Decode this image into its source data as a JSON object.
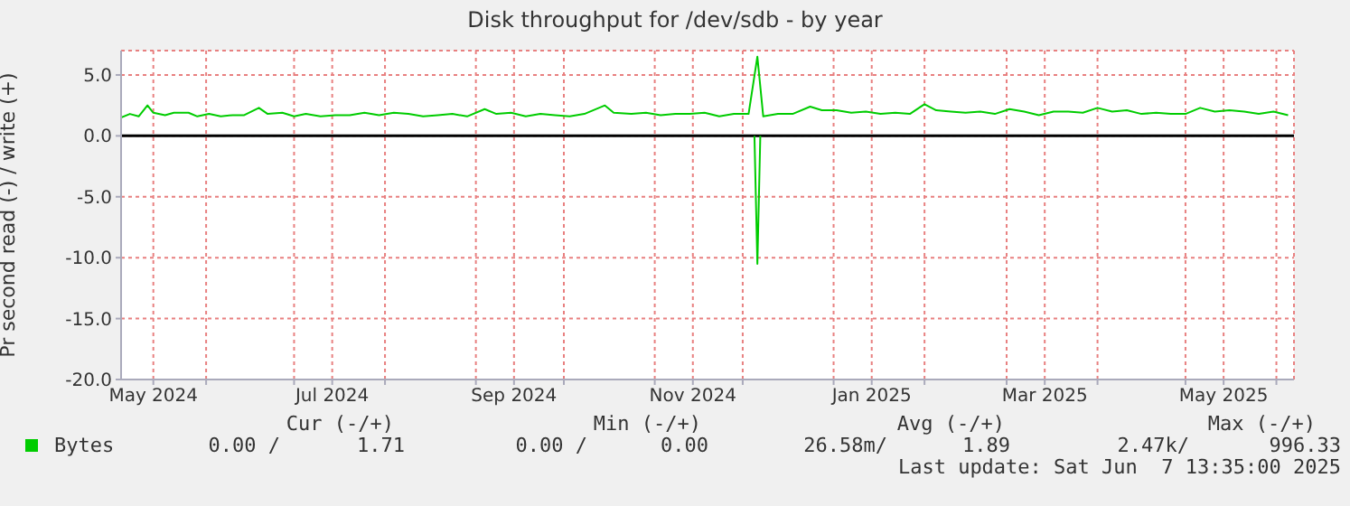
{
  "chart_data": {
    "type": "line",
    "title": "Disk throughput for /dev/sdb - by year",
    "ylabel": "Pr second read (-) / write (+)",
    "xlim": [
      "2024-05-03",
      "2025-06-07"
    ],
    "xticks": [
      {
        "value": "2024-05-14",
        "label": "May 2024"
      },
      {
        "value": "2024-06-01",
        "label": null
      },
      {
        "value": "2024-07-01",
        "label": null
      },
      {
        "value": "2024-07-14",
        "label": "Jul 2024"
      },
      {
        "value": "2024-08-01",
        "label": null
      },
      {
        "value": "2024-09-01",
        "label": null
      },
      {
        "value": "2024-09-14",
        "label": "Sep 2024"
      },
      {
        "value": "2024-10-01",
        "label": null
      },
      {
        "value": "2024-11-01",
        "label": null
      },
      {
        "value": "2024-11-14",
        "label": "Nov 2024"
      },
      {
        "value": "2024-12-01",
        "label": null
      },
      {
        "value": "2025-01-01",
        "label": null
      },
      {
        "value": "2025-01-14",
        "label": "Jan 2025"
      },
      {
        "value": "2025-02-01",
        "label": null
      },
      {
        "value": "2025-03-01",
        "label": null
      },
      {
        "value": "2025-03-14",
        "label": "Mar 2025"
      },
      {
        "value": "2025-04-01",
        "label": null
      },
      {
        "value": "2025-05-01",
        "label": null
      },
      {
        "value": "2025-05-14",
        "label": "May 2025"
      },
      {
        "value": "2025-06-01",
        "label": null
      }
    ],
    "ylim": [
      -20,
      7
    ],
    "yticks": [
      {
        "value": -20,
        "label": "-20.0"
      },
      {
        "value": -15,
        "label": "-15.0"
      },
      {
        "value": -10,
        "label": "-10.0"
      },
      {
        "value": -5,
        "label": "-5.0"
      },
      {
        "value": 0,
        "label": "0.0"
      },
      {
        "value": 5,
        "label": "5.0"
      }
    ],
    "grid": true,
    "legend": "bottom",
    "marker": "none",
    "line_style": "solid",
    "ref_lines": [
      {
        "axis": "y",
        "value": 0,
        "color": "#000000"
      }
    ],
    "series": [
      {
        "name": "Bytes",
        "color": "#00cc00",
        "x": [
          "2024-05-03",
          "2024-05-06",
          "2024-05-09",
          "2024-05-12",
          "2024-05-14",
          "2024-05-18",
          "2024-05-21",
          "2024-05-26",
          "2024-05-29",
          "2024-06-02",
          "2024-06-06",
          "2024-06-10",
          "2024-06-14",
          "2024-06-19",
          "2024-06-22",
          "2024-06-27",
          "2024-07-01",
          "2024-07-05",
          "2024-07-10",
          "2024-07-15",
          "2024-07-20",
          "2024-07-25",
          "2024-07-30",
          "2024-08-04",
          "2024-08-09",
          "2024-08-14",
          "2024-08-19",
          "2024-08-24",
          "2024-08-29",
          "2024-09-04",
          "2024-09-08",
          "2024-09-13",
          "2024-09-18",
          "2024-09-23",
          "2024-09-28",
          "2024-10-03",
          "2024-10-08",
          "2024-10-15",
          "2024-10-18",
          "2024-10-24",
          "2024-10-29",
          "2024-11-03",
          "2024-11-08",
          "2024-11-13",
          "2024-11-18",
          "2024-11-23",
          "2024-11-28",
          "2024-12-03",
          "2024-12-06",
          "2024-12-08",
          "2024-12-13",
          "2024-12-18",
          "2024-12-24",
          "2024-12-28",
          "2025-01-02",
          "2025-01-07",
          "2025-01-12",
          "2025-01-17",
          "2025-01-22",
          "2025-01-27",
          "2025-02-01",
          "2025-02-05",
          "2025-02-10",
          "2025-02-15",
          "2025-02-20",
          "2025-02-25",
          "2025-03-02",
          "2025-03-07",
          "2025-03-12",
          "2025-03-17",
          "2025-03-22",
          "2025-03-27",
          "2025-04-01",
          "2025-04-06",
          "2025-04-11",
          "2025-04-16",
          "2025-04-21",
          "2025-04-26",
          "2025-05-01",
          "2025-05-06",
          "2025-05-11",
          "2025-05-16",
          "2025-05-21",
          "2025-05-26",
          "2025-05-31",
          "2025-06-05"
        ],
        "values": [
          1.5,
          1.8,
          1.6,
          2.5,
          1.9,
          1.7,
          1.9,
          1.9,
          1.6,
          1.8,
          1.6,
          1.7,
          1.7,
          2.3,
          1.8,
          1.9,
          1.6,
          1.8,
          1.6,
          1.7,
          1.7,
          1.9,
          1.7,
          1.9,
          1.8,
          1.6,
          1.7,
          1.8,
          1.6,
          2.2,
          1.8,
          1.9,
          1.6,
          1.8,
          1.7,
          1.6,
          1.8,
          2.5,
          1.9,
          1.8,
          1.9,
          1.7,
          1.8,
          1.8,
          1.9,
          1.6,
          1.8,
          1.8,
          6.5,
          1.6,
          1.8,
          1.8,
          2.4,
          2.1,
          2.1,
          1.9,
          2.0,
          1.8,
          1.9,
          1.8,
          2.6,
          2.1,
          2.0,
          1.9,
          2.0,
          1.8,
          2.2,
          2.0,
          1.7,
          2.0,
          2.0,
          1.9,
          2.3,
          2.0,
          2.1,
          1.8,
          1.9,
          1.8,
          1.8,
          2.3,
          2.0,
          2.1,
          2.0,
          1.8,
          2.0,
          1.7
        ]
      },
      {
        "color": "#00cc00",
        "x": [
          "2024-12-05",
          "2024-12-06",
          "2024-12-07"
        ],
        "values": [
          0,
          -10.5,
          0
        ]
      }
    ],
    "annotations": [
      "Cur (-/+)",
      "Min (-/+)",
      "Avg (-/+)",
      "Max (-/+)",
      "0.00 /",
      "1.71",
      "0.00 /",
      "0.00",
      "26.58m/",
      "1.89",
      "2.47k/",
      "996.33",
      "Last update: Sat Jun  7 13:35:00 2025"
    ]
  }
}
